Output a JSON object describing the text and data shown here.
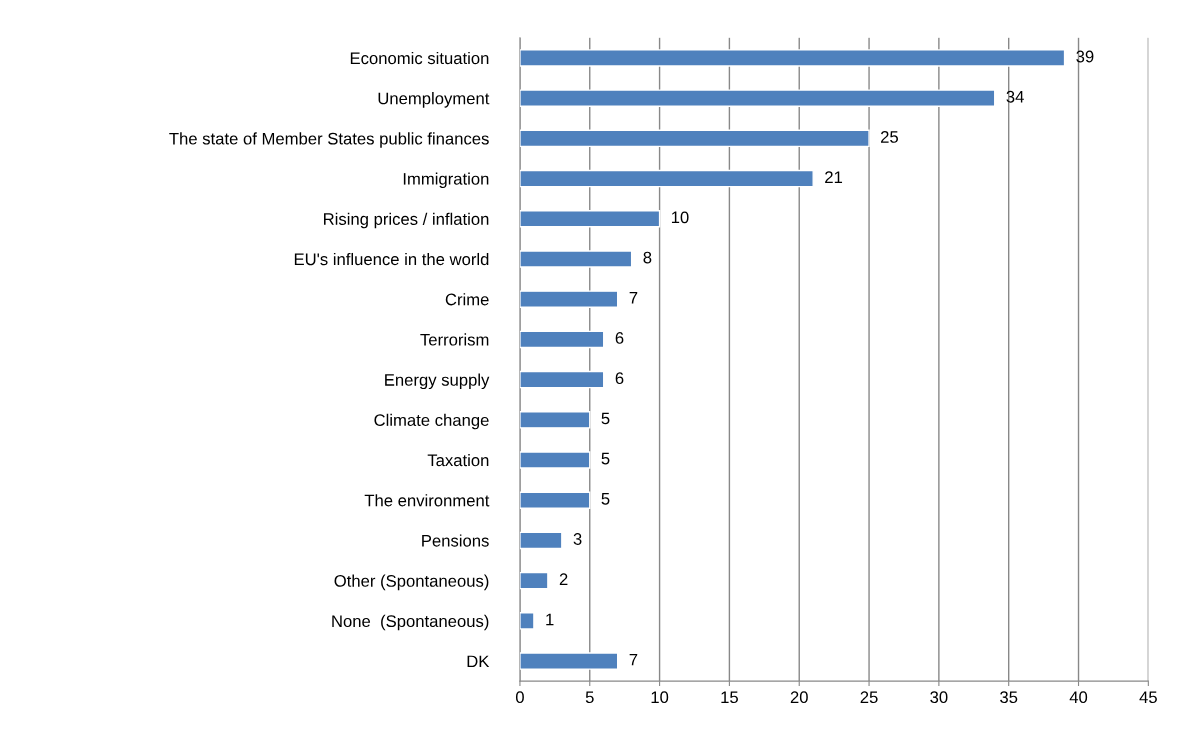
{
  "chart_data": {
    "type": "bar",
    "orientation": "horizontal",
    "categories": [
      "Economic situation",
      "Unemployment",
      "The state of Member States public finances",
      "Immigration",
      "Rising prices / inflation",
      "EU's influence in the world",
      "Crime",
      "Terrorism",
      "Energy supply",
      "Climate change",
      "Taxation",
      "The environment",
      "Pensions",
      "Other (Spontaneous)",
      "None  (Spontaneous)",
      "DK"
    ],
    "values": [
      39,
      34,
      25,
      21,
      10,
      8,
      7,
      6,
      6,
      5,
      5,
      5,
      3,
      2,
      1,
      7
    ],
    "color": "#4f81bd",
    "xlim": [
      0,
      45
    ],
    "xticks": [
      0,
      5,
      10,
      15,
      20,
      25,
      30,
      35,
      40,
      45
    ],
    "grid": "x",
    "data_labels": true,
    "legend": false
  }
}
